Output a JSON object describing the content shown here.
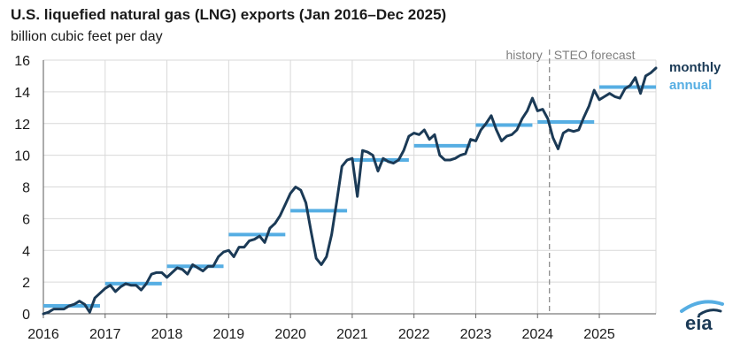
{
  "chart_data": {
    "type": "line",
    "title": "U.S. liquefied natural gas (LNG) exports (Jan 2016–Dec 2025)",
    "subtitle": "billion cubic feet per day",
    "xlabel": "",
    "ylabel": "",
    "xlim": [
      "2016-01",
      "2025-12"
    ],
    "ylim": [
      0,
      16
    ],
    "yticks": [
      0,
      2,
      4,
      6,
      8,
      10,
      12,
      14,
      16
    ],
    "xticks": [
      "2016",
      "2017",
      "2018",
      "2019",
      "2020",
      "2021",
      "2022",
      "2023",
      "2024",
      "2025"
    ],
    "grid": true,
    "legend": {
      "placement": "right",
      "entries": [
        "monthly",
        "annual"
      ]
    },
    "annotations": {
      "history": "history",
      "forecast": "STEO forecast",
      "forecast_start": "2024-04"
    },
    "colors": {
      "monthly": "#1b3a56",
      "annual": "#56aee3",
      "grid": "#d9d9d9",
      "divider": "#8c8c8c"
    },
    "logo": "eia",
    "series": [
      {
        "name": "monthly",
        "x": [
          "2016-01",
          "2016-02",
          "2016-03",
          "2016-04",
          "2016-05",
          "2016-06",
          "2016-07",
          "2016-08",
          "2016-09",
          "2016-10",
          "2016-11",
          "2016-12",
          "2017-01",
          "2017-02",
          "2017-03",
          "2017-04",
          "2017-05",
          "2017-06",
          "2017-07",
          "2017-08",
          "2017-09",
          "2017-10",
          "2017-11",
          "2017-12",
          "2018-01",
          "2018-02",
          "2018-03",
          "2018-04",
          "2018-05",
          "2018-06",
          "2018-07",
          "2018-08",
          "2018-09",
          "2018-10",
          "2018-11",
          "2018-12",
          "2019-01",
          "2019-02",
          "2019-03",
          "2019-04",
          "2019-05",
          "2019-06",
          "2019-07",
          "2019-08",
          "2019-09",
          "2019-10",
          "2019-11",
          "2019-12",
          "2020-01",
          "2020-02",
          "2020-03",
          "2020-04",
          "2020-05",
          "2020-06",
          "2020-07",
          "2020-08",
          "2020-09",
          "2020-10",
          "2020-11",
          "2020-12",
          "2021-01",
          "2021-02",
          "2021-03",
          "2021-04",
          "2021-05",
          "2021-06",
          "2021-07",
          "2021-08",
          "2021-09",
          "2021-10",
          "2021-11",
          "2021-12",
          "2022-01",
          "2022-02",
          "2022-03",
          "2022-04",
          "2022-05",
          "2022-06",
          "2022-07",
          "2022-08",
          "2022-09",
          "2022-10",
          "2022-11",
          "2022-12",
          "2023-01",
          "2023-02",
          "2023-03",
          "2023-04",
          "2023-05",
          "2023-06",
          "2023-07",
          "2023-08",
          "2023-09",
          "2023-10",
          "2023-11",
          "2023-12",
          "2024-01",
          "2024-02",
          "2024-03",
          "2024-04",
          "2024-05",
          "2024-06",
          "2024-07",
          "2024-08",
          "2024-09",
          "2024-10",
          "2024-11",
          "2024-12",
          "2025-01",
          "2025-02",
          "2025-03",
          "2025-04",
          "2025-05",
          "2025-06",
          "2025-07",
          "2025-08",
          "2025-09",
          "2025-10",
          "2025-11",
          "2025-12"
        ],
        "values": [
          0.0,
          0.1,
          0.3,
          0.3,
          0.3,
          0.5,
          0.6,
          0.8,
          0.6,
          0.1,
          1.0,
          1.3,
          1.6,
          1.8,
          1.4,
          1.7,
          1.9,
          1.8,
          1.8,
          1.5,
          1.9,
          2.5,
          2.6,
          2.6,
          2.3,
          2.6,
          2.9,
          2.8,
          2.5,
          3.1,
          2.9,
          2.7,
          3.0,
          3.0,
          3.6,
          3.9,
          4.0,
          3.6,
          4.2,
          4.2,
          4.6,
          4.7,
          4.9,
          4.5,
          5.4,
          5.7,
          6.2,
          6.9,
          7.6,
          8.0,
          7.8,
          7.0,
          5.2,
          3.5,
          3.1,
          3.6,
          5.0,
          7.1,
          9.3,
          9.7,
          9.8,
          7.4,
          10.3,
          10.2,
          10.0,
          9.0,
          9.8,
          9.6,
          9.5,
          9.7,
          10.3,
          11.2,
          11.4,
          11.3,
          11.6,
          11.0,
          11.3,
          10.0,
          9.7,
          9.7,
          9.8,
          10.0,
          10.1,
          11.0,
          10.9,
          11.6,
          12.0,
          12.5,
          11.6,
          10.9,
          11.2,
          11.3,
          11.6,
          12.3,
          12.8,
          13.6,
          12.8,
          12.9,
          12.3,
          11.1,
          10.4,
          11.4,
          11.6,
          11.5,
          11.6,
          12.4,
          13.1,
          14.1,
          13.5,
          13.7,
          13.9,
          13.7,
          13.6,
          14.2,
          14.4,
          14.9,
          13.9,
          15.0,
          15.2,
          15.5
        ]
      },
      {
        "name": "annual",
        "segments": [
          {
            "year": "2016",
            "value": 0.5
          },
          {
            "year": "2017",
            "value": 1.9
          },
          {
            "year": "2018",
            "value": 3.0
          },
          {
            "year": "2019",
            "value": 5.0
          },
          {
            "year": "2020",
            "value": 6.5
          },
          {
            "year": "2021",
            "value": 9.7
          },
          {
            "year": "2022",
            "value": 10.6
          },
          {
            "year": "2023",
            "value": 11.9
          },
          {
            "year": "2024",
            "value": 12.1
          },
          {
            "year": "2025",
            "value": 14.3
          }
        ]
      }
    ]
  }
}
